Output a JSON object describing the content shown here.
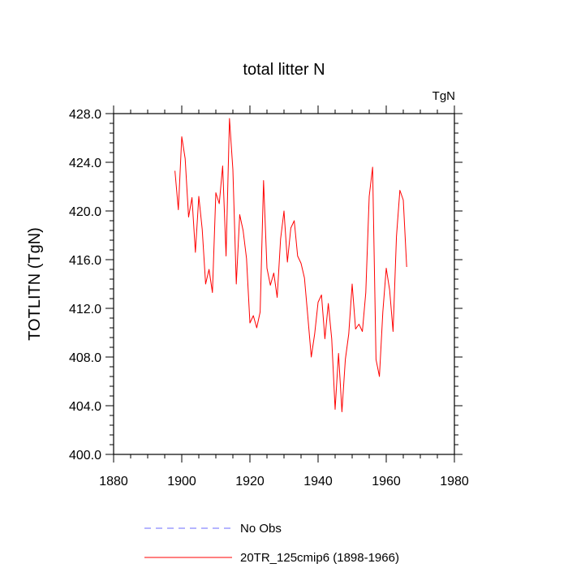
{
  "chart_data": {
    "type": "line",
    "title": "total litter N",
    "units_label": "TgN",
    "xlabel": "",
    "ylabel": "TOTLITN  (TgN)",
    "xlim": [
      1880,
      1980
    ],
    "ylim": [
      400,
      428
    ],
    "x_ticks": [
      1880,
      1900,
      1920,
      1940,
      1960,
      1980
    ],
    "x_tick_labels": [
      "1880",
      "1900",
      "1920",
      "1940",
      "1960",
      "1980"
    ],
    "y_ticks": [
      400,
      404,
      408,
      412,
      416,
      420,
      424,
      428
    ],
    "y_tick_labels": [
      "400.0",
      "404.0",
      "408.0",
      "412.0",
      "416.0",
      "420.0",
      "424.0",
      "428.0"
    ],
    "grid": false,
    "legend_position": "bottom",
    "series": [
      {
        "name": "20TR_125cmip6 (1898-1966)",
        "color": "#ff0000",
        "dash": "solid",
        "x": [
          1898,
          1899,
          1900,
          1901,
          1902,
          1903,
          1904,
          1905,
          1906,
          1907,
          1908,
          1909,
          1910,
          1911,
          1912,
          1913,
          1914,
          1915,
          1916,
          1917,
          1918,
          1919,
          1920,
          1921,
          1922,
          1923,
          1924,
          1925,
          1926,
          1927,
          1928,
          1929,
          1930,
          1931,
          1932,
          1933,
          1934,
          1935,
          1936,
          1937,
          1938,
          1939,
          1940,
          1941,
          1942,
          1943,
          1944,
          1945,
          1946,
          1947,
          1948,
          1949,
          1950,
          1951,
          1952,
          1953,
          1954,
          1955,
          1956,
          1957,
          1958,
          1959,
          1960,
          1961,
          1962,
          1963,
          1964,
          1965,
          1966
        ],
        "values": [
          423.3,
          420.1,
          426.1,
          424.3,
          419.5,
          421.1,
          416.6,
          421.2,
          418.5,
          414.0,
          415.2,
          413.3,
          421.5,
          420.6,
          423.7,
          416.3,
          427.6,
          423.4,
          414.0,
          419.7,
          418.4,
          416.1,
          410.8,
          411.4,
          410.4,
          411.7,
          422.5,
          415.3,
          413.9,
          414.9,
          412.9,
          417.7,
          420.0,
          415.8,
          418.6,
          419.2,
          416.3,
          415.7,
          414.5,
          411.3,
          408.0,
          409.9,
          412.5,
          413.1,
          409.5,
          412.4,
          409.5,
          403.7,
          408.3,
          403.5,
          407.8,
          409.9,
          414.0,
          410.3,
          410.7,
          410.1,
          413.3,
          421.2,
          423.6,
          407.8,
          406.4,
          411.7,
          415.3,
          413.5,
          410.1,
          417.9,
          421.7,
          420.9,
          415.4
        ]
      }
    ],
    "legend": [
      {
        "label": "No Obs",
        "color": "#6b6bff",
        "dash": "dashed"
      },
      {
        "label": "20TR_125cmip6 (1898-1966)",
        "color": "#ff0000",
        "dash": "solid"
      }
    ]
  }
}
